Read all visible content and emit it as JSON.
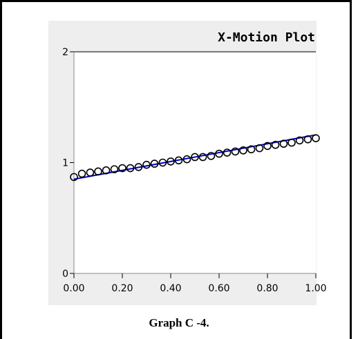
{
  "caption": "Graph C -4.",
  "chart_data": {
    "type": "scatter",
    "title": "X-Motion Plot",
    "xlabel": "",
    "ylabel": "",
    "xlim": [
      0,
      1
    ],
    "ylim": [
      0,
      2
    ],
    "x_ticks": [
      "0.00",
      "0.20",
      "0.40",
      "0.60",
      "0.80",
      "1.00"
    ],
    "y_ticks": [
      "0",
      "1",
      "2"
    ],
    "grid": false,
    "series": [
      {
        "kind": "points",
        "marker": "open-circle",
        "color": "#000000",
        "x": [
          0.0,
          0.033,
          0.067,
          0.1,
          0.133,
          0.167,
          0.2,
          0.233,
          0.267,
          0.3,
          0.333,
          0.367,
          0.4,
          0.433,
          0.467,
          0.5,
          0.533,
          0.567,
          0.6,
          0.633,
          0.667,
          0.7,
          0.733,
          0.767,
          0.8,
          0.833,
          0.867,
          0.9,
          0.933,
          0.967,
          1.0
        ],
        "y": [
          0.87,
          0.9,
          0.91,
          0.92,
          0.93,
          0.94,
          0.95,
          0.95,
          0.96,
          0.98,
          0.99,
          1.0,
          1.01,
          1.02,
          1.03,
          1.05,
          1.05,
          1.06,
          1.08,
          1.09,
          1.1,
          1.11,
          1.12,
          1.13,
          1.15,
          1.16,
          1.17,
          1.18,
          1.2,
          1.21,
          1.22
        ]
      },
      {
        "kind": "fit-line",
        "color": "#0000cc",
        "x": [
          0.0,
          1.0
        ],
        "y": [
          0.85,
          1.25
        ]
      }
    ]
  }
}
